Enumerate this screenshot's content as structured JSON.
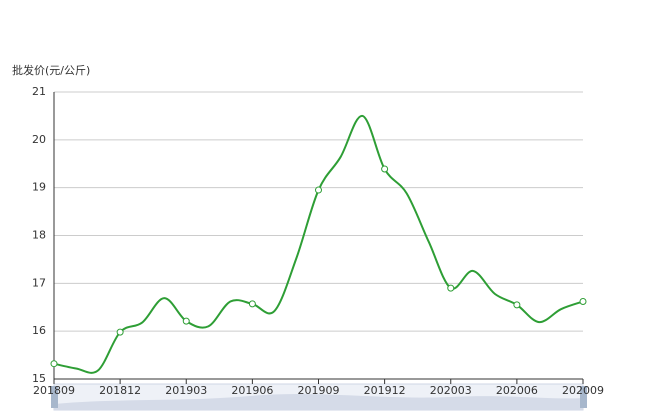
{
  "chart_data": {
    "type": "line",
    "y_label": "批发价(元/公斤)",
    "categories": [
      "201809",
      null,
      null,
      "201812",
      null,
      null,
      "201903",
      null,
      null,
      "201906",
      null,
      null,
      "201909",
      null,
      null,
      "201912",
      null,
      null,
      "202003",
      null,
      null,
      "202006",
      null,
      null,
      "202009"
    ],
    "series": [
      {
        "color": "#2e9e35",
        "values": [
          15.32,
          15.22,
          15.18,
          15.98,
          16.18,
          16.69,
          16.21,
          16.1,
          16.62,
          16.57,
          16.42,
          17.53,
          18.95,
          19.64,
          20.5,
          19.39,
          18.88,
          17.87,
          16.9,
          17.26,
          16.78,
          16.55,
          16.19,
          16.46,
          16.62
        ]
      }
    ],
    "ylim": [
      15,
      21
    ],
    "yticks": [
      15,
      16,
      17,
      18,
      19,
      20,
      21
    ],
    "grid": true,
    "smooth": true
  }
}
